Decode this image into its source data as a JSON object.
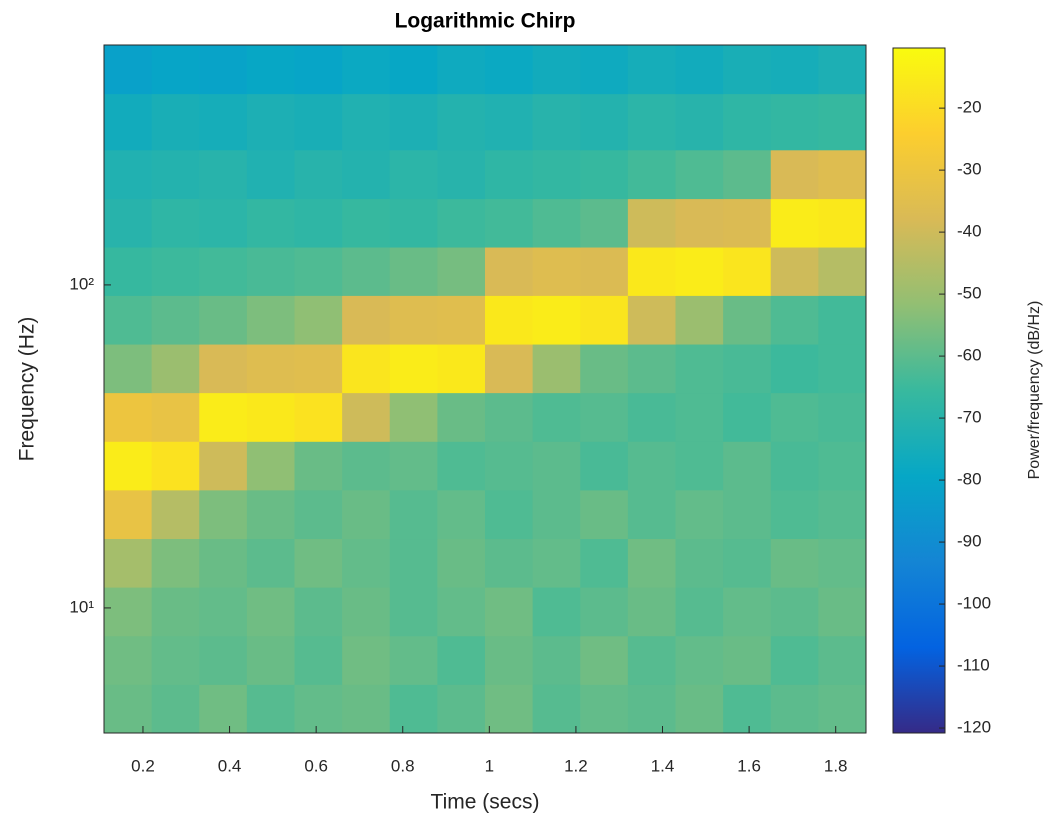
{
  "chart_data": {
    "type": "heatmap",
    "title": "Logarithmic Chirp",
    "x_label": "Time (secs)",
    "y_label": "Frequency (Hz)",
    "colorbar_label": "Power/frequency (dB/Hz)",
    "y_scale": "log",
    "xlim": [
      0.11,
      1.87
    ],
    "ylim": [
      4.1,
      553
    ],
    "xticks": [
      0.2,
      0.4,
      0.6,
      0.8,
      1,
      1.2,
      1.4,
      1.6,
      1.8
    ],
    "yticks": [
      {
        "value": 10,
        "label": "10¹"
      },
      {
        "value": 100,
        "label": "10²"
      }
    ],
    "clim": [
      -120.8,
      -10.3
    ],
    "cticks": [
      -120,
      -110,
      -100,
      -90,
      -80,
      -70,
      -60,
      -50,
      -40,
      -30,
      -20
    ],
    "colormap": [
      "#352a87",
      "#0363e1",
      "#1485d4",
      "#06a7c6",
      "#38b99e",
      "#92bf73",
      "#d9ba56",
      "#fcce2e",
      "#f9fb0e"
    ],
    "xbins": [
      0.11,
      0.22,
      0.33,
      0.44,
      0.55,
      0.66,
      0.77,
      0.88,
      0.99,
      1.1,
      1.21,
      1.32,
      1.43,
      1.54,
      1.65,
      1.76,
      1.87
    ],
    "ybins": [
      4.1,
      5.8,
      8.2,
      11.6,
      16.4,
      23.2,
      32.8,
      46.4,
      65.6,
      92.8,
      131,
      185,
      262,
      391,
      553
    ],
    "z": [
      [
        -58,
        -60,
        -57,
        -61,
        -59,
        -58,
        -62,
        -60,
        -57,
        -61,
        -59,
        -60,
        -58,
        -62,
        -60,
        -59
      ],
      [
        -57,
        -59,
        -60,
        -58,
        -61,
        -57,
        -59,
        -62,
        -58,
        -60,
        -57,
        -61,
        -59,
        -58,
        -62,
        -60
      ],
      [
        -55,
        -58,
        -59,
        -57,
        -60,
        -58,
        -61,
        -59,
        -57,
        -62,
        -60,
        -58,
        -61,
        -59,
        -60,
        -58
      ],
      [
        -48,
        -55,
        -58,
        -60,
        -57,
        -59,
        -61,
        -58,
        -60,
        -59,
        -62,
        -57,
        -60,
        -61,
        -58,
        -59
      ],
      [
        -32,
        -45,
        -55,
        -58,
        -60,
        -58,
        -61,
        -59,
        -62,
        -60,
        -58,
        -61,
        -59,
        -60,
        -62,
        -61
      ],
      [
        -15,
        -18,
        -40,
        -52,
        -58,
        -60,
        -59,
        -62,
        -61,
        -60,
        -63,
        -61,
        -62,
        -60,
        -63,
        -62
      ],
      [
        -30,
        -32,
        -15,
        -16,
        -18,
        -40,
        -52,
        -58,
        -60,
        -62,
        -61,
        -63,
        -62,
        -64,
        -62,
        -63
      ],
      [
        -55,
        -50,
        -38,
        -36,
        -35,
        -17,
        -15,
        -16,
        -38,
        -50,
        -58,
        -60,
        -62,
        -63,
        -65,
        -64
      ],
      [
        -62,
        -60,
        -58,
        -55,
        -52,
        -38,
        -36,
        -35,
        -16,
        -15,
        -17,
        -40,
        -50,
        -58,
        -62,
        -64
      ],
      [
        -66,
        -65,
        -64,
        -63,
        -62,
        -60,
        -58,
        -56,
        -38,
        -36,
        -37,
        -16,
        -15,
        -17,
        -40,
        -45
      ],
      [
        -70,
        -68,
        -69,
        -67,
        -68,
        -66,
        -67,
        -65,
        -64,
        -62,
        -60,
        -40,
        -38,
        -37,
        -15,
        -16
      ],
      [
        -72,
        -71,
        -70,
        -72,
        -70,
        -71,
        -69,
        -70,
        -68,
        -67,
        -66,
        -64,
        -62,
        -60,
        -38,
        -36
      ],
      [
        -76,
        -74,
        -75,
        -73,
        -74,
        -72,
        -73,
        -71,
        -72,
        -70,
        -71,
        -69,
        -70,
        -68,
        -67,
        -66
      ],
      [
        -82,
        -80,
        -81,
        -79,
        -80,
        -78,
        -79,
        -77,
        -78,
        -76,
        -77,
        -75,
        -76,
        -74,
        -75,
        -73
      ]
    ]
  }
}
